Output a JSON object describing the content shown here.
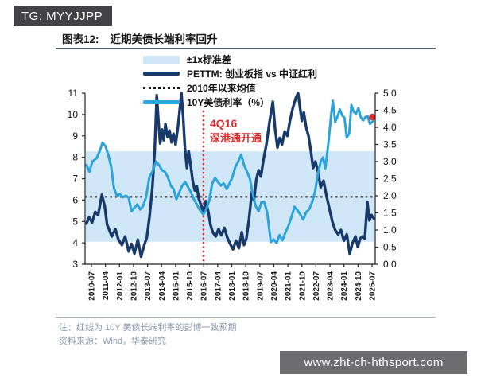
{
  "badges": {
    "tg": "TG: MYYJJPP",
    "watermark": "www.zht-ch-hthsport.com"
  },
  "header": {
    "chart_label": "图表12:",
    "title": "近期美债长端利率回升"
  },
  "notes": {
    "line1": "注：红线为 10Y 美债长端利率的彭博一致预期",
    "line2": "资料来源：Wind，华泰研究"
  },
  "chart_data": {
    "type": "line",
    "title": "近期美债长端利率回升",
    "x_ticks": [
      "2010-07",
      "2011-04",
      "2012-01",
      "2012-10",
      "2013-07",
      "2014-04",
      "2015-01",
      "2015-10",
      "2016-07",
      "2017-04",
      "2018-01",
      "2018-10",
      "2019-07",
      "2020-04",
      "2021-01",
      "2021-10",
      "2022-07",
      "2023-04",
      "2024-01",
      "2024-10",
      "2025-07"
    ],
    "left_axis": {
      "min": 3,
      "max": 11,
      "step": 1
    },
    "right_axis": {
      "min": 0.0,
      "max": 5.0,
      "step": 0.5
    },
    "grid": false,
    "legend_position": "top",
    "band": {
      "low": 4.05,
      "high": 8.28,
      "color": "#cfe7f6",
      "label": "±1x标准差"
    },
    "mean_line": {
      "value": 6.15,
      "color": "#111111",
      "label": "2010年以来均值"
    },
    "red_vline": {
      "frac": 0.408,
      "color": "#e02b2b",
      "label1": "4Q16",
      "label2": "深港通开通"
    },
    "red_dot": {
      "frac": 0.99,
      "value": 4.3,
      "color": "#e02b2b"
    },
    "series": [
      {
        "name": "PETTM: 创业板指 vs 中证红利",
        "axis": "left",
        "color": "#17396b",
        "width": 3.4,
        "points": [
          [
            0.005,
            4.9
          ],
          [
            0.014,
            5.2
          ],
          [
            0.024,
            4.95
          ],
          [
            0.035,
            5.45
          ],
          [
            0.045,
            5.3
          ],
          [
            0.058,
            6.25
          ],
          [
            0.068,
            5.7
          ],
          [
            0.076,
            4.85
          ],
          [
            0.085,
            4.55
          ],
          [
            0.092,
            4.3
          ],
          [
            0.104,
            4.65
          ],
          [
            0.115,
            4.15
          ],
          [
            0.127,
            3.9
          ],
          [
            0.138,
            4.3
          ],
          [
            0.15,
            3.6
          ],
          [
            0.16,
            3.95
          ],
          [
            0.17,
            3.5
          ],
          [
            0.182,
            4.15
          ],
          [
            0.193,
            3.35
          ],
          [
            0.204,
            3.9
          ],
          [
            0.213,
            4.25
          ],
          [
            0.222,
            5.2
          ],
          [
            0.232,
            6.6
          ],
          [
            0.24,
            8.3
          ],
          [
            0.247,
            10.9
          ],
          [
            0.253,
            9.7
          ],
          [
            0.259,
            8.65
          ],
          [
            0.265,
            9.3
          ],
          [
            0.271,
            8.8
          ],
          [
            0.277,
            9.55
          ],
          [
            0.284,
            8.95
          ],
          [
            0.291,
            9.25
          ],
          [
            0.298,
            8.7
          ],
          [
            0.305,
            9.1
          ],
          [
            0.312,
            8.6
          ],
          [
            0.32,
            9.4
          ],
          [
            0.326,
            10.2
          ],
          [
            0.332,
            11.0
          ],
          [
            0.338,
            9.9
          ],
          [
            0.344,
            8.45
          ],
          [
            0.351,
            7.5
          ],
          [
            0.357,
            8.3
          ],
          [
            0.364,
            7.6
          ],
          [
            0.371,
            6.9
          ],
          [
            0.378,
            6.45
          ],
          [
            0.385,
            6.65
          ],
          [
            0.392,
            6.05
          ],
          [
            0.4,
            5.75
          ],
          [
            0.408,
            5.45
          ],
          [
            0.416,
            5.95
          ],
          [
            0.424,
            5.5
          ],
          [
            0.432,
            4.85
          ],
          [
            0.44,
            4.5
          ],
          [
            0.45,
            4.3
          ],
          [
            0.46,
            4.65
          ],
          [
            0.47,
            4.35
          ],
          [
            0.48,
            4.7
          ],
          [
            0.49,
            4.25
          ],
          [
            0.5,
            3.95
          ],
          [
            0.51,
            3.7
          ],
          [
            0.52,
            4.1
          ],
          [
            0.53,
            3.75
          ],
          [
            0.54,
            4.5
          ],
          [
            0.548,
            3.9
          ],
          [
            0.556,
            4.2
          ],
          [
            0.565,
            5.1
          ],
          [
            0.575,
            6.4
          ],
          [
            0.582,
            6.0
          ],
          [
            0.59,
            6.95
          ],
          [
            0.598,
            7.4
          ],
          [
            0.606,
            7.1
          ],
          [
            0.615,
            7.9
          ],
          [
            0.625,
            8.6
          ],
          [
            0.635,
            9.6
          ],
          [
            0.647,
            10.6
          ],
          [
            0.655,
            9.3
          ],
          [
            0.663,
            8.45
          ],
          [
            0.671,
            8.9
          ],
          [
            0.679,
            8.6
          ],
          [
            0.688,
            9.2
          ],
          [
            0.697,
            9.0
          ],
          [
            0.706,
            9.7
          ],
          [
            0.716,
            10.3
          ],
          [
            0.727,
            10.8
          ],
          [
            0.734,
            11.0
          ],
          [
            0.74,
            10.4
          ],
          [
            0.747,
            9.7
          ],
          [
            0.754,
            10.1
          ],
          [
            0.762,
            9.4
          ],
          [
            0.77,
            9.0
          ],
          [
            0.778,
            8.3
          ],
          [
            0.786,
            7.5
          ],
          [
            0.794,
            7.8
          ],
          [
            0.803,
            7.3
          ],
          [
            0.812,
            6.6
          ],
          [
            0.822,
            6.9
          ],
          [
            0.832,
            6.2
          ],
          [
            0.842,
            5.6
          ],
          [
            0.852,
            5.0
          ],
          [
            0.862,
            4.6
          ],
          [
            0.872,
            4.4
          ],
          [
            0.882,
            4.6
          ],
          [
            0.892,
            4.1
          ],
          [
            0.902,
            4.4
          ],
          [
            0.912,
            3.5
          ],
          [
            0.922,
            4.0
          ],
          [
            0.932,
            4.3
          ],
          [
            0.94,
            3.8
          ],
          [
            0.948,
            4.2
          ],
          [
            0.956,
            4.3
          ],
          [
            0.964,
            4.2
          ],
          [
            0.973,
            5.9
          ],
          [
            0.98,
            5.05
          ],
          [
            0.987,
            5.3
          ],
          [
            0.995,
            5.15
          ]
        ]
      },
      {
        "name": "10Y美债利率（%）",
        "axis": "right",
        "color": "#2ba3dc",
        "width": 3.0,
        "points": [
          [
            0.005,
            2.9
          ],
          [
            0.015,
            2.7
          ],
          [
            0.025,
            3.0
          ],
          [
            0.04,
            3.1
          ],
          [
            0.05,
            3.3
          ],
          [
            0.06,
            3.55
          ],
          [
            0.07,
            3.45
          ],
          [
            0.08,
            3.2
          ],
          [
            0.09,
            2.85
          ],
          [
            0.1,
            2.2
          ],
          [
            0.11,
            2.0
          ],
          [
            0.12,
            2.05
          ],
          [
            0.13,
            1.95
          ],
          [
            0.14,
            2.0
          ],
          [
            0.15,
            1.95
          ],
          [
            0.16,
            1.55
          ],
          [
            0.17,
            1.65
          ],
          [
            0.18,
            1.75
          ],
          [
            0.19,
            1.6
          ],
          [
            0.2,
            1.7
          ],
          [
            0.21,
            1.95
          ],
          [
            0.222,
            2.55
          ],
          [
            0.232,
            2.7
          ],
          [
            0.245,
            3.0
          ],
          [
            0.255,
            2.9
          ],
          [
            0.265,
            2.75
          ],
          [
            0.275,
            2.7
          ],
          [
            0.285,
            2.55
          ],
          [
            0.295,
            2.3
          ],
          [
            0.305,
            2.2
          ],
          [
            0.315,
            1.9
          ],
          [
            0.325,
            2.1
          ],
          [
            0.335,
            2.3
          ],
          [
            0.345,
            2.4
          ],
          [
            0.355,
            2.25
          ],
          [
            0.365,
            2.1
          ],
          [
            0.375,
            1.9
          ],
          [
            0.385,
            1.75
          ],
          [
            0.395,
            1.6
          ],
          [
            0.408,
            1.45
          ],
          [
            0.418,
            1.62
          ],
          [
            0.428,
            1.85
          ],
          [
            0.438,
            2.35
          ],
          [
            0.448,
            2.52
          ],
          [
            0.458,
            2.4
          ],
          [
            0.468,
            2.3
          ],
          [
            0.478,
            2.36
          ],
          [
            0.488,
            2.2
          ],
          [
            0.498,
            2.36
          ],
          [
            0.508,
            2.55
          ],
          [
            0.518,
            2.85
          ],
          [
            0.528,
            3.0
          ],
          [
            0.538,
            3.2
          ],
          [
            0.548,
            2.9
          ],
          [
            0.558,
            2.7
          ],
          [
            0.568,
            2.5
          ],
          [
            0.578,
            2.05
          ],
          [
            0.588,
            1.7
          ],
          [
            0.598,
            1.55
          ],
          [
            0.608,
            1.82
          ],
          [
            0.618,
            1.8
          ],
          [
            0.628,
            1.5
          ],
          [
            0.64,
            0.65
          ],
          [
            0.65,
            0.72
          ],
          [
            0.66,
            0.62
          ],
          [
            0.67,
            0.85
          ],
          [
            0.68,
            0.7
          ],
          [
            0.69,
            0.92
          ],
          [
            0.7,
            1.1
          ],
          [
            0.712,
            1.4
          ],
          [
            0.722,
            1.68
          ],
          [
            0.732,
            1.58
          ],
          [
            0.742,
            1.45
          ],
          [
            0.752,
            1.3
          ],
          [
            0.762,
            1.52
          ],
          [
            0.772,
            1.6
          ],
          [
            0.782,
            1.8
          ],
          [
            0.792,
            2.1
          ],
          [
            0.802,
            2.6
          ],
          [
            0.812,
            3.0
          ],
          [
            0.82,
            3.12
          ],
          [
            0.828,
            2.8
          ],
          [
            0.838,
            3.5
          ],
          [
            0.848,
            4.35
          ],
          [
            0.854,
            4.78
          ],
          [
            0.862,
            4.15
          ],
          [
            0.87,
            4.32
          ],
          [
            0.878,
            4.52
          ],
          [
            0.886,
            4.35
          ],
          [
            0.894,
            4.28
          ],
          [
            0.902,
            3.7
          ],
          [
            0.91,
            3.82
          ],
          [
            0.918,
            4.65
          ],
          [
            0.926,
            4.45
          ],
          [
            0.934,
            4.4
          ],
          [
            0.942,
            4.56
          ],
          [
            0.95,
            4.3
          ],
          [
            0.958,
            4.2
          ],
          [
            0.966,
            4.3
          ],
          [
            0.974,
            4.32
          ],
          [
            0.982,
            4.1
          ],
          [
            0.992,
            4.18
          ]
        ]
      }
    ]
  }
}
